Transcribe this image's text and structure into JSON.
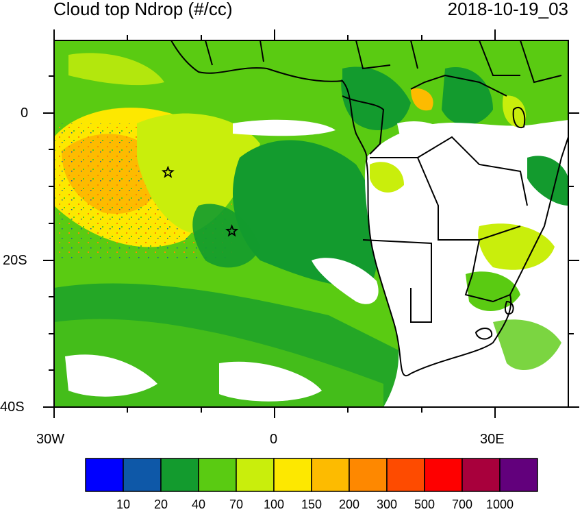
{
  "title_left": "Cloud top Ndrop (#/cc)",
  "title_right": "2018-10-19_03",
  "lat_labels": [
    "0",
    "20S",
    "40S"
  ],
  "lon_labels": [
    "30W",
    "0",
    "30E"
  ],
  "colorbar": {
    "colors": [
      "#0000ff",
      "#0e58a8",
      "#139b2e",
      "#5acb12",
      "#c9ee0c",
      "#fde800",
      "#fdbb00",
      "#fe8800",
      "#fe4b00",
      "#fe0000",
      "#a8003c",
      "#62007c"
    ],
    "labels": [
      "10",
      "20",
      "40",
      "70",
      "100",
      "150",
      "200",
      "300",
      "500",
      "700",
      "1000"
    ]
  },
  "markers": [
    {
      "name": "star",
      "lon": -14.5,
      "lat": -8
    },
    {
      "name": "star",
      "lon": -5.8,
      "lat": -16
    }
  ]
}
